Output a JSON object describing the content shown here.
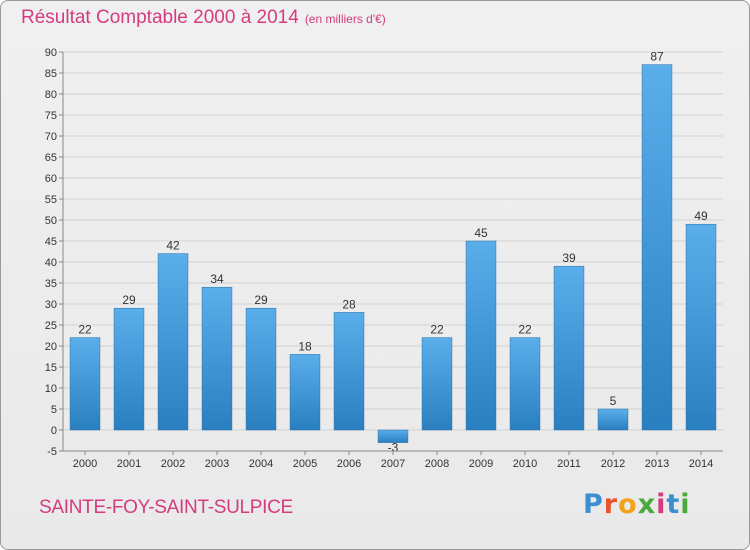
{
  "header": {
    "title": "Résultat Comptable 2000 à 2014",
    "subtitle": "(en milliers d'€)"
  },
  "footer": {
    "commune": "SAINTE-FOY-SAINT-SULPICE",
    "brand": "Proxiti"
  },
  "colors": {
    "title": "#d53c80",
    "bar_light": "#5aaeea",
    "bar_dark": "#2a7fc0",
    "grid": "#d2d2d2"
  },
  "chart_data": {
    "type": "bar",
    "categories": [
      "2000",
      "2001",
      "2002",
      "2003",
      "2004",
      "2005",
      "2006",
      "2007",
      "2008",
      "2009",
      "2010",
      "2011",
      "2012",
      "2013",
      "2014"
    ],
    "values": [
      22,
      29,
      42,
      34,
      29,
      18,
      28,
      -3,
      22,
      45,
      22,
      39,
      5,
      87,
      49
    ],
    "data_labels": [
      "22",
      "29",
      "42",
      "34",
      "29",
      "18",
      "28",
      "-3",
      "22",
      "45",
      "22",
      "39",
      "5",
      "87",
      "49"
    ],
    "ylim": [
      -5,
      90
    ],
    "yticks": [
      -5,
      0,
      5,
      10,
      15,
      20,
      25,
      30,
      35,
      40,
      45,
      50,
      55,
      60,
      65,
      70,
      75,
      80,
      85,
      90
    ],
    "grid": true
  }
}
